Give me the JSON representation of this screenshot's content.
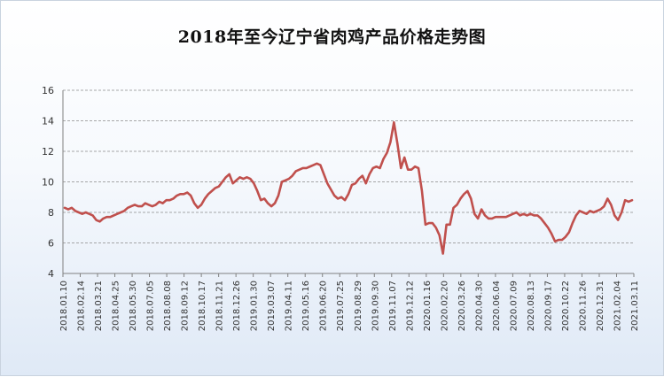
{
  "chart_data": {
    "type": "line",
    "title": "2018年至今辽宁省肉鸡产品价格走势图",
    "xlabel": "",
    "ylabel": "",
    "ylim": [
      4,
      16
    ],
    "y_ticks": [
      4,
      6,
      8,
      10,
      12,
      14,
      16
    ],
    "x_tick_labels": [
      "2018.01.10",
      "2018.02.14",
      "2018.03.21",
      "2018.04.25",
      "2018.05.30",
      "2018.07.05",
      "2018.08.08",
      "2018.09.12",
      "2018.10.17",
      "2018.11.21",
      "2018.12.26",
      "2019.01.30",
      "2019.03.07",
      "2019.04.11",
      "2019.05.16",
      "2019.06.20",
      "2019.07.25",
      "2019.08.29",
      "2019.09.30",
      "2019.11.07",
      "2019.12.12",
      "2020.01.16",
      "2020.02.20",
      "2020.03.26",
      "2020.04.30",
      "2020.06.04",
      "2020.07.09",
      "2020.08.13",
      "2020.09.17",
      "2020.10.22",
      "2020.11.26",
      "2020.12.31",
      "2021.02.04",
      "2021.03.11"
    ],
    "grid": true,
    "series_color": "#c0504d",
    "series": [
      {
        "values": [
          8.3,
          8.2,
          8.3,
          8.1,
          8.0,
          7.9,
          8.0,
          7.9,
          7.8,
          7.5,
          7.4,
          7.6,
          7.7,
          7.7,
          7.8,
          7.9,
          8.0,
          8.1,
          8.3,
          8.4,
          8.5,
          8.4,
          8.4,
          8.6,
          8.5,
          8.4,
          8.5,
          8.7,
          8.6,
          8.8,
          8.8,
          8.9,
          9.1,
          9.2,
          9.2,
          9.3,
          9.1,
          8.6,
          8.3,
          8.5,
          8.9,
          9.2,
          9.4,
          9.6,
          9.7,
          10.0,
          10.3,
          10.5,
          9.9,
          10.1,
          10.3,
          10.2,
          10.3,
          10.2,
          9.9,
          9.4,
          8.8,
          8.9,
          8.6,
          8.4,
          8.6,
          9.1,
          10.0,
          10.1,
          10.2,
          10.4,
          10.7,
          10.8,
          10.9,
          10.9,
          11.0,
          11.1,
          11.2,
          11.1,
          10.5,
          9.9,
          9.5,
          9.1,
          8.9,
          9.0,
          8.8,
          9.2,
          9.8,
          9.9,
          10.2,
          10.4,
          9.9,
          10.5,
          10.9,
          11.0,
          10.9,
          11.5,
          11.9,
          12.6,
          13.9,
          12.5,
          10.9,
          11.6,
          10.8,
          10.8,
          11.0,
          10.9,
          9.4,
          7.2,
          7.3,
          7.3,
          7.0,
          6.5,
          5.3,
          7.2,
          7.2,
          8.3,
          8.5,
          8.9,
          9.2,
          9.4,
          8.9,
          7.9,
          7.6,
          8.2,
          7.8,
          7.6,
          7.6,
          7.7,
          7.7,
          7.7,
          7.7,
          7.8,
          7.9,
          8.0,
          7.8,
          7.9,
          7.8,
          7.9,
          7.8,
          7.8,
          7.6,
          7.3,
          7.0,
          6.6,
          6.1,
          6.2,
          6.2,
          6.4,
          6.7,
          7.3,
          7.8,
          8.1,
          8.0,
          7.9,
          8.1,
          8.0,
          8.1,
          8.2,
          8.4,
          8.9,
          8.5,
          7.8,
          7.5,
          8.0,
          8.8,
          8.7,
          8.8
        ]
      }
    ]
  }
}
